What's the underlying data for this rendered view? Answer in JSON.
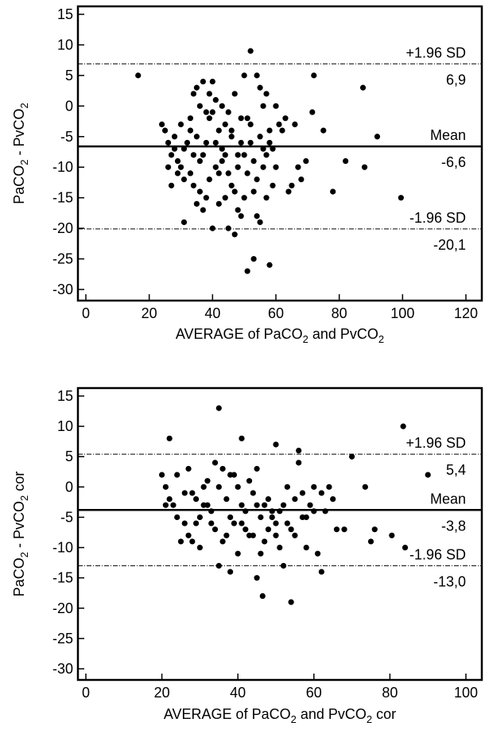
{
  "chart_data": [
    {
      "type": "scatter",
      "xlabel": "AVERAGE of PaCO2 and PvCO2",
      "ylabel": "PaCO2 - PvCO2",
      "xlim": [
        0,
        120
      ],
      "ylim": [
        -30,
        15
      ],
      "xticks": [
        0,
        20,
        40,
        60,
        80,
        100,
        120
      ],
      "yticks": [
        15,
        10,
        5,
        0,
        -5,
        -10,
        -15,
        -20,
        -25,
        -30
      ],
      "lines": [
        {
          "label": "+1.96 SD",
          "value_label": "6,9",
          "y": 6.9,
          "style": "dotted"
        },
        {
          "label": "Mean",
          "value_label": "-6,6",
          "y": -6.6,
          "style": "solid"
        },
        {
          "label": "-1.96 SD",
          "value_label": "-20,1",
          "y": -20.1,
          "style": "dotted"
        }
      ],
      "points": [
        [
          16.5,
          5
        ],
        [
          24,
          -3
        ],
        [
          26,
          -6
        ],
        [
          27,
          -13
        ],
        [
          28,
          -5
        ],
        [
          30,
          -10
        ],
        [
          31,
          -19
        ],
        [
          33,
          -11
        ],
        [
          34,
          2
        ],
        [
          35,
          3
        ],
        [
          36,
          -14
        ],
        [
          37,
          4
        ],
        [
          38,
          -6
        ],
        [
          39,
          -2
        ],
        [
          40,
          4
        ],
        [
          41,
          -10
        ],
        [
          42,
          -4
        ],
        [
          43,
          0
        ],
        [
          44,
          -15
        ],
        [
          45,
          -20
        ],
        [
          46,
          -5
        ],
        [
          47,
          -21
        ],
        [
          48,
          -8
        ],
        [
          49,
          -2
        ],
        [
          50,
          5
        ],
        [
          51,
          -11
        ],
        [
          52,
          9
        ],
        [
          53,
          -25
        ],
        [
          54,
          5
        ],
        [
          55,
          -19
        ],
        [
          56,
          -7
        ],
        [
          57,
          2
        ],
        [
          58,
          -26
        ],
        [
          59,
          -13
        ],
        [
          60,
          0
        ],
        [
          62,
          -4
        ],
        [
          64,
          -14
        ],
        [
          66,
          -3
        ],
        [
          68,
          -12
        ],
        [
          69.5,
          -9
        ],
        [
          71.5,
          -1
        ],
        [
          72,
          5
        ],
        [
          75,
          -4
        ],
        [
          78,
          -14
        ],
        [
          82,
          -9
        ],
        [
          87.5,
          3
        ],
        [
          88,
          -10
        ],
        [
          92,
          -5
        ],
        [
          99.5,
          -15
        ],
        [
          29,
          -9
        ],
        [
          31,
          -7
        ],
        [
          33,
          -2
        ],
        [
          34,
          -13
        ],
        [
          35,
          -5
        ],
        [
          36,
          0
        ],
        [
          37,
          -8
        ],
        [
          38,
          -15
        ],
        [
          39,
          -12
        ],
        [
          40,
          -1
        ],
        [
          41,
          -6
        ],
        [
          42,
          -16
        ],
        [
          43,
          -9
        ],
        [
          44,
          -3
        ],
        [
          45,
          -11
        ],
        [
          46,
          -13
        ],
        [
          47,
          2
        ],
        [
          48,
          -17
        ],
        [
          49,
          -6
        ],
        [
          50,
          -8
        ],
        [
          51,
          -27
        ],
        [
          52,
          -3
        ],
        [
          53,
          -9
        ],
        [
          54,
          -12
        ],
        [
          55,
          -5
        ],
        [
          56,
          0
        ],
        [
          57,
          -15
        ],
        [
          58,
          -4
        ],
        [
          59,
          -7
        ],
        [
          60,
          -10
        ],
        [
          61,
          -3
        ],
        [
          63,
          -2
        ],
        [
          65,
          -13
        ],
        [
          67,
          -10
        ],
        [
          39,
          2
        ],
        [
          41,
          1
        ],
        [
          43,
          -7
        ],
        [
          45,
          -1
        ],
        [
          47,
          -14
        ],
        [
          49,
          -18
        ],
        [
          51,
          -2
        ],
        [
          53,
          -14
        ],
        [
          55,
          3
        ],
        [
          57,
          -8
        ],
        [
          40,
          -20
        ],
        [
          42,
          -11
        ],
        [
          44,
          -8
        ],
        [
          46,
          -4
        ],
        [
          48,
          -10
        ],
        [
          50,
          -15
        ],
        [
          52,
          -6
        ],
        [
          54,
          -18
        ],
        [
          56,
          -10
        ],
        [
          58,
          -6
        ],
        [
          37,
          -17
        ],
        [
          38,
          -1
        ],
        [
          36,
          -9
        ],
        [
          35,
          -16
        ],
        [
          34,
          -8
        ],
        [
          33,
          -4
        ],
        [
          32,
          -6
        ],
        [
          31,
          -12
        ],
        [
          30,
          -3
        ],
        [
          29,
          -11
        ],
        [
          28,
          -7
        ],
        [
          27,
          -8
        ],
        [
          26,
          -10
        ],
        [
          25,
          -4
        ]
      ]
    },
    {
      "type": "scatter",
      "xlabel": "AVERAGE of PaCO2 and PvCO2 cor",
      "ylabel": "PaCO2 - PvCO2 cor",
      "xlim": [
        0,
        100
      ],
      "ylim": [
        -30,
        15
      ],
      "xticks": [
        0,
        20,
        40,
        60,
        80,
        100
      ],
      "yticks": [
        15,
        10,
        5,
        0,
        -5,
        -10,
        -15,
        -20,
        -25,
        -30
      ],
      "lines": [
        {
          "label": "+1.96 SD",
          "value_label": "5,4",
          "y": 5.4,
          "style": "dotted"
        },
        {
          "label": "Mean",
          "value_label": "-3,8",
          "y": -3.8,
          "style": "solid"
        },
        {
          "label": "-1.96 SD",
          "value_label": "-13,0",
          "y": -13.0,
          "style": "dotted"
        }
      ],
      "points": [
        [
          35,
          13
        ],
        [
          22,
          8
        ],
        [
          41,
          8
        ],
        [
          50,
          7
        ],
        [
          56,
          6
        ],
        [
          70,
          5
        ],
        [
          83.5,
          10
        ],
        [
          90,
          2
        ],
        [
          73.5,
          0
        ],
        [
          76,
          -7
        ],
        [
          80.5,
          -8
        ],
        [
          84,
          -10
        ],
        [
          75,
          -9
        ],
        [
          62,
          -14
        ],
        [
          54,
          -19
        ],
        [
          46.5,
          -18
        ],
        [
          45,
          -15
        ],
        [
          38,
          -14
        ],
        [
          35,
          -13
        ],
        [
          28,
          -9
        ],
        [
          25,
          -9
        ],
        [
          21,
          0
        ],
        [
          20,
          2
        ],
        [
          23,
          -3
        ],
        [
          26,
          -6
        ],
        [
          27,
          3
        ],
        [
          29,
          -2
        ],
        [
          30,
          -5
        ],
        [
          31,
          0
        ],
        [
          32,
          1
        ],
        [
          33,
          -4
        ],
        [
          34,
          4
        ],
        [
          36,
          3
        ],
        [
          37,
          -2
        ],
        [
          38,
          2
        ],
        [
          39,
          -6
        ],
        [
          40,
          0
        ],
        [
          41,
          -3
        ],
        [
          42,
          -7
        ],
        [
          43,
          1
        ],
        [
          44,
          -8
        ],
        [
          45,
          3
        ],
        [
          46,
          -5
        ],
        [
          47,
          -9
        ],
        [
          48,
          -2
        ],
        [
          49,
          -4
        ],
        [
          50,
          -6
        ],
        [
          51,
          -10
        ],
        [
          52,
          -3
        ],
        [
          53,
          0
        ],
        [
          54,
          -7
        ],
        [
          55,
          -2
        ],
        [
          57,
          -1
        ],
        [
          58,
          -5
        ],
        [
          59,
          -3
        ],
        [
          60,
          0
        ],
        [
          61,
          -11
        ],
        [
          63,
          -4
        ],
        [
          65,
          -2
        ],
        [
          66,
          -7
        ],
        [
          68,
          -7
        ],
        [
          24,
          2
        ],
        [
          28,
          -1
        ],
        [
          30,
          -10
        ],
        [
          32,
          -3
        ],
        [
          34,
          -7
        ],
        [
          36,
          -9
        ],
        [
          38,
          -5
        ],
        [
          40,
          -11
        ],
        [
          42,
          -4
        ],
        [
          44,
          -1
        ],
        [
          46,
          -11
        ],
        [
          48,
          -7
        ],
        [
          50,
          -8
        ],
        [
          52,
          -13
        ],
        [
          56,
          4
        ],
        [
          58,
          -10
        ],
        [
          60,
          -4
        ],
        [
          62,
          -1
        ],
        [
          64,
          0
        ],
        [
          39,
          2
        ],
        [
          41,
          -6
        ],
        [
          43,
          -8
        ],
        [
          45,
          -3
        ],
        [
          47,
          -3
        ],
        [
          49,
          -5
        ],
        [
          51,
          -4
        ],
        [
          53,
          -6
        ],
        [
          55,
          -8
        ],
        [
          57,
          -5
        ],
        [
          33,
          -6
        ],
        [
          37,
          -8
        ],
        [
          35,
          0
        ],
        [
          31,
          -3
        ],
        [
          29,
          -6
        ],
        [
          27,
          -8
        ],
        [
          26,
          -1
        ],
        [
          24,
          -5
        ],
        [
          22,
          -2
        ],
        [
          21,
          -3
        ]
      ]
    }
  ]
}
